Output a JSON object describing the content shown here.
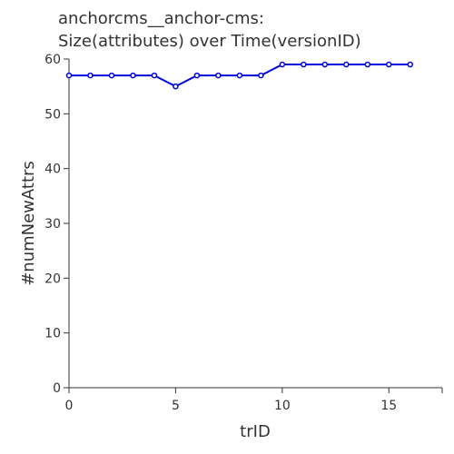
{
  "chart_data": {
    "type": "line",
    "title_lines": [
      "anchorcms__anchor-cms:",
      "Size(attributes) over Time(versionID)"
    ],
    "xlabel": "trID",
    "ylabel": "#numNewAttrs",
    "xlim": [
      0,
      17.5
    ],
    "ylim": [
      0,
      60
    ],
    "xticks": [
      0,
      5,
      10,
      15
    ],
    "yticks": [
      0,
      10,
      20,
      30,
      40,
      50,
      60
    ],
    "grid": false,
    "color": "#0000dd",
    "series": [
      {
        "x": [
          0,
          1,
          2,
          3,
          4,
          5,
          6,
          7,
          8,
          9,
          10,
          11,
          12,
          13,
          14,
          15,
          16
        ],
        "values": [
          57,
          57,
          57,
          57,
          57,
          55,
          57,
          57,
          57,
          57,
          59,
          59,
          59,
          59,
          59,
          59,
          59
        ]
      }
    ]
  }
}
